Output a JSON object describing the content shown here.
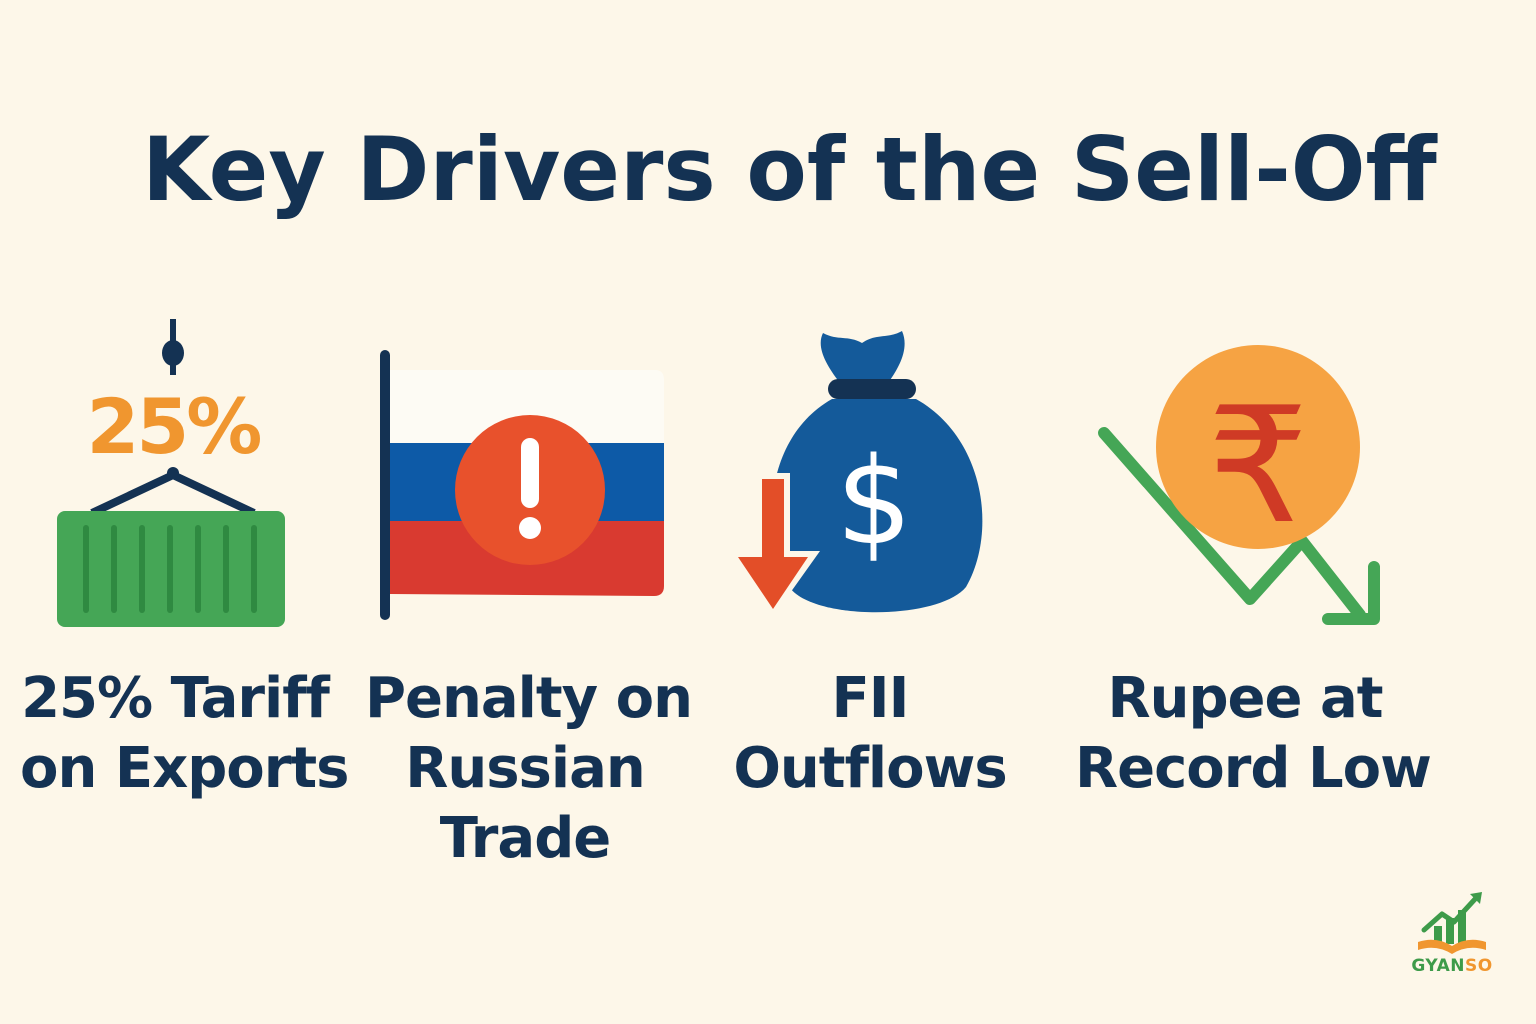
{
  "title": "Key Drivers of the Sell-Off",
  "colors": {
    "navy": "#143253",
    "orange": "#f0962f",
    "green": "#45a656",
    "red": "#e34e28",
    "blue": "#145a9a",
    "background": "#fdf7e9"
  },
  "drivers": [
    {
      "icon": "cargo-container-tariff-icon",
      "icon_text": "25%",
      "caption_lines": [
        "25% Tariff",
        "on Exports"
      ]
    },
    {
      "icon": "russian-flag-warning-icon",
      "icon_text": "!",
      "caption_lines": [
        "Penalty on",
        "Russian",
        "Trade"
      ]
    },
    {
      "icon": "money-bag-outflow-icon",
      "icon_text": "$",
      "caption_lines": [
        "FII",
        "Outflows"
      ]
    },
    {
      "icon": "rupee-coin-decline-icon",
      "icon_text": "₹",
      "caption_lines": [
        "Rupee at",
        "Record Low"
      ]
    }
  ],
  "logo": {
    "text_part1": "GYAN",
    "text_part2": "SO",
    "icon": "growth-book-logo-icon"
  }
}
